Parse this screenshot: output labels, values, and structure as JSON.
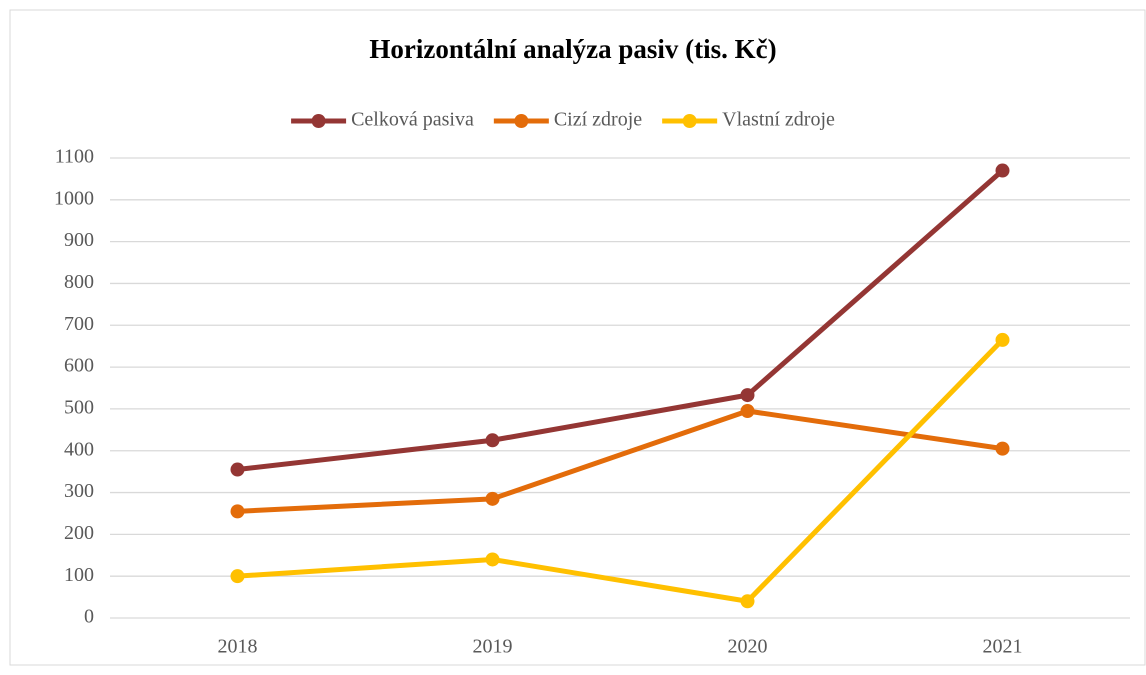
{
  "chart_data": {
    "type": "line",
    "title": "Horizontální analýza pasiv (tis. Kč)",
    "categories": [
      "2018",
      "2019",
      "2020",
      "2021"
    ],
    "series": [
      {
        "name": "Celková pasiva",
        "color": "#943634",
        "values": [
          355,
          425,
          533,
          1070
        ]
      },
      {
        "name": "Cizí zdroje",
        "color": "#e36c0a",
        "values": [
          255,
          285,
          495,
          405
        ]
      },
      {
        "name": "Vlastní zdroje",
        "color": "#ffc000",
        "values": [
          100,
          140,
          40,
          665
        ]
      }
    ],
    "ylim": [
      0,
      1100
    ],
    "yticks": [
      0,
      100,
      200,
      300,
      400,
      500,
      600,
      700,
      800,
      900,
      1000,
      1100
    ],
    "grid": true,
    "legend": "top"
  }
}
